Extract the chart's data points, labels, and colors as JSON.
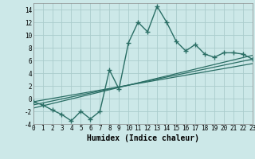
{
  "x_min": 0,
  "x_max": 23,
  "y_min": -4,
  "y_max": 15,
  "xlabel": "Humidex (Indice chaleur)",
  "background_color": "#cce8e8",
  "grid_color": "#aacccc",
  "line_color": "#2a6e65",
  "line1_x": [
    0,
    1,
    2,
    3,
    4,
    5,
    6,
    7,
    8,
    9,
    10,
    11,
    12,
    13,
    14,
    15,
    16,
    17,
    18,
    19,
    20,
    21,
    22,
    23
  ],
  "line1_y": [
    -0.5,
    -1.0,
    -1.8,
    -2.5,
    -3.5,
    -2.0,
    -3.2,
    -2.0,
    4.5,
    1.5,
    8.8,
    12.0,
    10.5,
    14.5,
    12.0,
    9.0,
    7.5,
    8.5,
    7.0,
    6.5,
    7.2,
    7.2,
    7.0,
    6.2
  ],
  "line2_x": [
    0,
    23
  ],
  "line2_y": [
    -1.0,
    6.2
  ],
  "line3_x": [
    0,
    23
  ],
  "line3_y": [
    -0.5,
    5.5
  ],
  "line4_x": [
    0,
    23
  ],
  "line4_y": [
    -1.5,
    6.8
  ],
  "yticks": [
    -4,
    -2,
    0,
    2,
    4,
    6,
    8,
    10,
    12,
    14
  ],
  "xticks": [
    0,
    1,
    2,
    3,
    4,
    5,
    6,
    7,
    8,
    9,
    10,
    11,
    12,
    13,
    14,
    15,
    16,
    17,
    18,
    19,
    20,
    21,
    22,
    23
  ],
  "tick_fontsize": 5.5,
  "xlabel_fontsize": 7
}
